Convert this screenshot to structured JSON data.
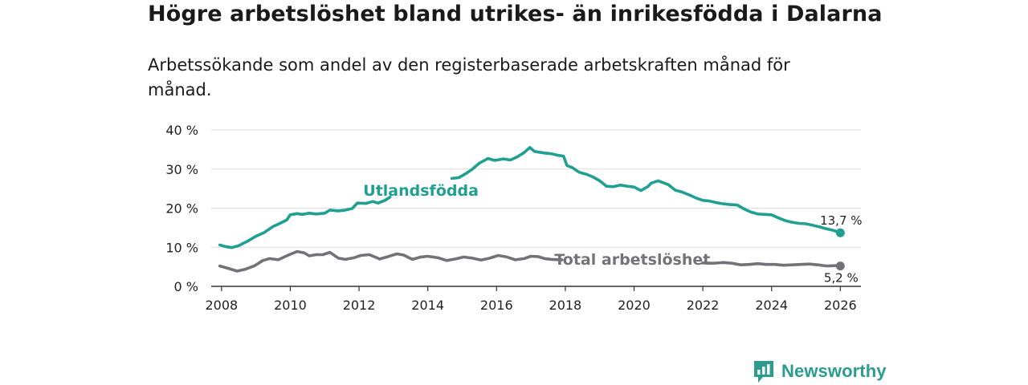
{
  "title": "Högre arbetslöshet bland utrikes- än inrikesfödda i Dalarna",
  "subtitle": "Arbetssökande som andel av den registerbaserade arbetskraften månad för månad.",
  "brand": "Newsworthy",
  "colors": {
    "foreign": "#1fa091",
    "total": "#737278",
    "grid": "#dddddd",
    "axis": "#333333",
    "brand": "#2a9d8f"
  },
  "chart_data": {
    "type": "line",
    "x_unit": "year",
    "xlim": [
      2007.7,
      2026.6
    ],
    "ylim": [
      0,
      40
    ],
    "x_ticks": [
      {
        "value": 2008,
        "label": "2008"
      },
      {
        "value": 2010,
        "label": "2010"
      },
      {
        "value": 2012,
        "label": "2012"
      },
      {
        "value": 2014,
        "label": "2014"
      },
      {
        "value": 2016,
        "label": "2016"
      },
      {
        "value": 2018,
        "label": "2018"
      },
      {
        "value": 2020,
        "label": "2020"
      },
      {
        "value": 2022,
        "label": "2022"
      },
      {
        "value": 2024,
        "label": "2024"
      },
      {
        "value": 2026,
        "label": "2026"
      }
    ],
    "y_ticks": [
      {
        "value": 0,
        "label": "0 %"
      },
      {
        "value": 10,
        "label": "10 %"
      },
      {
        "value": 20,
        "label": "20 %"
      },
      {
        "value": 30,
        "label": "30 %"
      },
      {
        "value": 40,
        "label": "40 %"
      }
    ],
    "grid": true,
    "series": [
      {
        "name": "Utlandsfödda",
        "label": "Utlandsfödda",
        "color": "#1fa091",
        "end_label": "13,7 %",
        "label_gap": [
          2012.9,
          2014.7
        ],
        "x": [
          2007.95,
          2008.1,
          2008.3,
          2008.5,
          2008.75,
          2009.0,
          2009.25,
          2009.5,
          2009.65,
          2009.9,
          2010.0,
          2010.2,
          2010.35,
          2010.55,
          2010.75,
          2011.0,
          2011.15,
          2011.4,
          2011.6,
          2011.8,
          2011.95,
          2012.2,
          2012.4,
          2012.55,
          2012.75,
          2012.9,
          2014.7,
          2014.9,
          2015.1,
          2015.3,
          2015.5,
          2015.75,
          2015.95,
          2016.2,
          2016.4,
          2016.6,
          2016.8,
          2016.97,
          2017.1,
          2017.4,
          2017.6,
          2017.8,
          2017.95,
          2018.05,
          2018.2,
          2018.4,
          2018.6,
          2018.8,
          2019.0,
          2019.2,
          2019.4,
          2019.6,
          2019.8,
          2020.0,
          2020.2,
          2020.4,
          2020.5,
          2020.7,
          2020.85,
          2021.0,
          2021.2,
          2021.4,
          2021.6,
          2021.8,
          2022.0,
          2022.2,
          2022.4,
          2022.6,
          2022.8,
          2023.0,
          2023.2,
          2023.4,
          2023.6,
          2023.8,
          2024.0,
          2024.2,
          2024.4,
          2024.6,
          2024.8,
          2025.0,
          2025.2,
          2025.4,
          2025.6,
          2025.8,
          2026.0
        ],
        "values": [
          10.6,
          10.2,
          9.9,
          10.4,
          11.5,
          12.8,
          13.8,
          15.3,
          15.9,
          17.0,
          18.3,
          18.6,
          18.4,
          18.7,
          18.5,
          18.7,
          19.5,
          19.3,
          19.5,
          19.9,
          21.3,
          21.2,
          21.7,
          21.3,
          22.0,
          22.8,
          27.6,
          27.8,
          28.8,
          30.0,
          31.5,
          32.7,
          32.2,
          32.6,
          32.3,
          33.1,
          34.2,
          35.5,
          34.5,
          34.1,
          33.9,
          33.5,
          33.3,
          30.9,
          30.4,
          29.2,
          28.7,
          28.0,
          27.0,
          25.6,
          25.5,
          25.9,
          25.6,
          25.4,
          24.5,
          25.5,
          26.4,
          27.0,
          26.5,
          26.0,
          24.6,
          24.1,
          23.4,
          22.6,
          22.0,
          21.8,
          21.4,
          21.1,
          20.9,
          20.8,
          19.8,
          19.0,
          18.5,
          18.4,
          18.3,
          17.5,
          16.8,
          16.4,
          16.1,
          16.0,
          15.6,
          15.2,
          14.7,
          14.3,
          13.7
        ]
      },
      {
        "name": "Total arbetslöshet",
        "label": "Total arbetslöshet",
        "color": "#737278",
        "end_label": "5,2 %",
        "label_gap": [
          2017.9,
          2022.0
        ],
        "x": [
          2007.95,
          2008.2,
          2008.45,
          2008.7,
          2008.95,
          2009.2,
          2009.4,
          2009.65,
          2009.85,
          2010.0,
          2010.2,
          2010.4,
          2010.55,
          2010.75,
          2010.95,
          2011.15,
          2011.4,
          2011.6,
          2011.85,
          2012.05,
          2012.3,
          2012.6,
          2012.85,
          2013.1,
          2013.3,
          2013.55,
          2013.8,
          2014.0,
          2014.3,
          2014.55,
          2014.8,
          2015.05,
          2015.3,
          2015.55,
          2015.8,
          2016.05,
          2016.3,
          2016.55,
          2016.8,
          2017.0,
          2017.2,
          2017.4,
          2017.6,
          2017.9,
          2022.0,
          2022.3,
          2022.6,
          2022.85,
          2023.1,
          2023.35,
          2023.6,
          2023.85,
          2024.1,
          2024.35,
          2024.6,
          2024.85,
          2025.1,
          2025.35,
          2025.6,
          2025.85,
          2026.0
        ],
        "values": [
          5.2,
          4.6,
          3.9,
          4.4,
          5.2,
          6.6,
          7.1,
          6.8,
          7.6,
          8.2,
          8.9,
          8.6,
          7.8,
          8.1,
          8.1,
          8.7,
          7.2,
          6.9,
          7.3,
          7.9,
          8.1,
          7.0,
          7.6,
          8.3,
          8.0,
          6.9,
          7.5,
          7.7,
          7.3,
          6.6,
          7.0,
          7.5,
          7.2,
          6.7,
          7.2,
          7.9,
          7.5,
          6.8,
          7.1,
          7.7,
          7.6,
          7.1,
          6.9,
          6.8,
          6.0,
          5.9,
          6.1,
          5.9,
          5.5,
          5.6,
          5.8,
          5.6,
          5.6,
          5.4,
          5.5,
          5.6,
          5.7,
          5.5,
          5.2,
          5.3,
          5.2
        ]
      }
    ]
  }
}
